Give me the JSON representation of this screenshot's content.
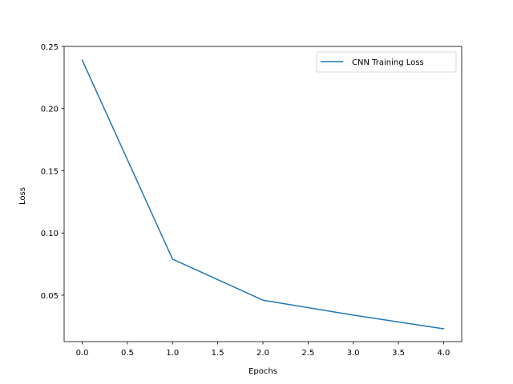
{
  "chart_data": {
    "type": "line",
    "title": "",
    "xlabel": "Epochs",
    "ylabel": "Loss",
    "xlim": [
      -0.2,
      4.2
    ],
    "ylim": [
      0.0127,
      0.25
    ],
    "xticks": [
      0.0,
      0.5,
      1.0,
      1.5,
      2.0,
      2.5,
      3.0,
      3.5,
      4.0
    ],
    "xtick_labels": [
      "0.0",
      "0.5",
      "1.0",
      "1.5",
      "2.0",
      "2.5",
      "3.0",
      "3.5",
      "4.0"
    ],
    "yticks": [
      0.05,
      0.1,
      0.15,
      0.2,
      0.25
    ],
    "ytick_labels": [
      "0.05",
      "0.10",
      "0.15",
      "0.20",
      "0.25"
    ],
    "grid": false,
    "legend": {
      "position": "top-right"
    },
    "series": [
      {
        "name": "CNN Training Loss",
        "color": "#1f77b4",
        "x": [
          0,
          1,
          2,
          3,
          4
        ],
        "y": [
          0.239,
          0.079,
          0.046,
          0.034,
          0.023
        ]
      }
    ]
  }
}
